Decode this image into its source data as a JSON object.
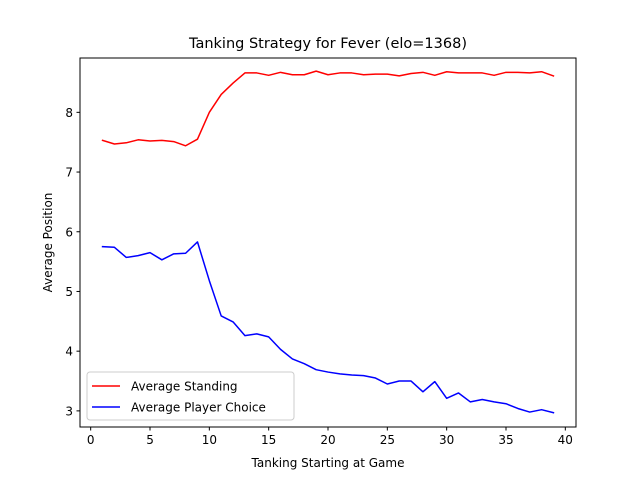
{
  "chart_data": {
    "type": "line",
    "title": "Tanking Strategy for Fever (elo=1368)",
    "xlabel": "Tanking Starting at Game",
    "ylabel": "Average Position",
    "xlim": [
      -0.9,
      40.9
    ],
    "ylim": [
      2.73,
      8.91
    ],
    "xticks": [
      0,
      5,
      10,
      15,
      20,
      25,
      30,
      35,
      40
    ],
    "yticks": [
      3,
      4,
      5,
      6,
      7,
      8
    ],
    "grid": false,
    "legend_position": "lower-left",
    "x": [
      1,
      2,
      3,
      4,
      5,
      6,
      7,
      8,
      9,
      10,
      11,
      12,
      13,
      14,
      15,
      16,
      17,
      18,
      19,
      20,
      21,
      22,
      23,
      24,
      25,
      26,
      27,
      28,
      29,
      30,
      31,
      32,
      33,
      34,
      35,
      36,
      37,
      38,
      39
    ],
    "series": [
      {
        "name": "Average Standing",
        "color": "#ff0000",
        "values": [
          7.53,
          7.47,
          7.49,
          7.54,
          7.52,
          7.53,
          7.51,
          7.44,
          7.55,
          8.0,
          8.3,
          8.49,
          8.66,
          8.66,
          8.62,
          8.67,
          8.63,
          8.63,
          8.69,
          8.63,
          8.66,
          8.66,
          8.63,
          8.64,
          8.64,
          8.61,
          8.65,
          8.67,
          8.62,
          8.68,
          8.66,
          8.66,
          8.66,
          8.62,
          8.67,
          8.67,
          8.66,
          8.68,
          8.61
        ]
      },
      {
        "name": "Average Player Choice",
        "color": "#0000ff",
        "values": [
          5.75,
          5.74,
          5.57,
          5.6,
          5.65,
          5.53,
          5.63,
          5.64,
          5.83,
          5.18,
          4.59,
          4.49,
          4.26,
          4.29,
          4.24,
          4.03,
          3.87,
          3.79,
          3.69,
          3.65,
          3.62,
          3.6,
          3.59,
          3.55,
          3.45,
          3.5,
          3.5,
          3.32,
          3.49,
          3.21,
          3.3,
          3.15,
          3.19,
          3.15,
          3.12,
          3.04,
          2.98,
          3.02,
          2.97
        ]
      }
    ]
  }
}
